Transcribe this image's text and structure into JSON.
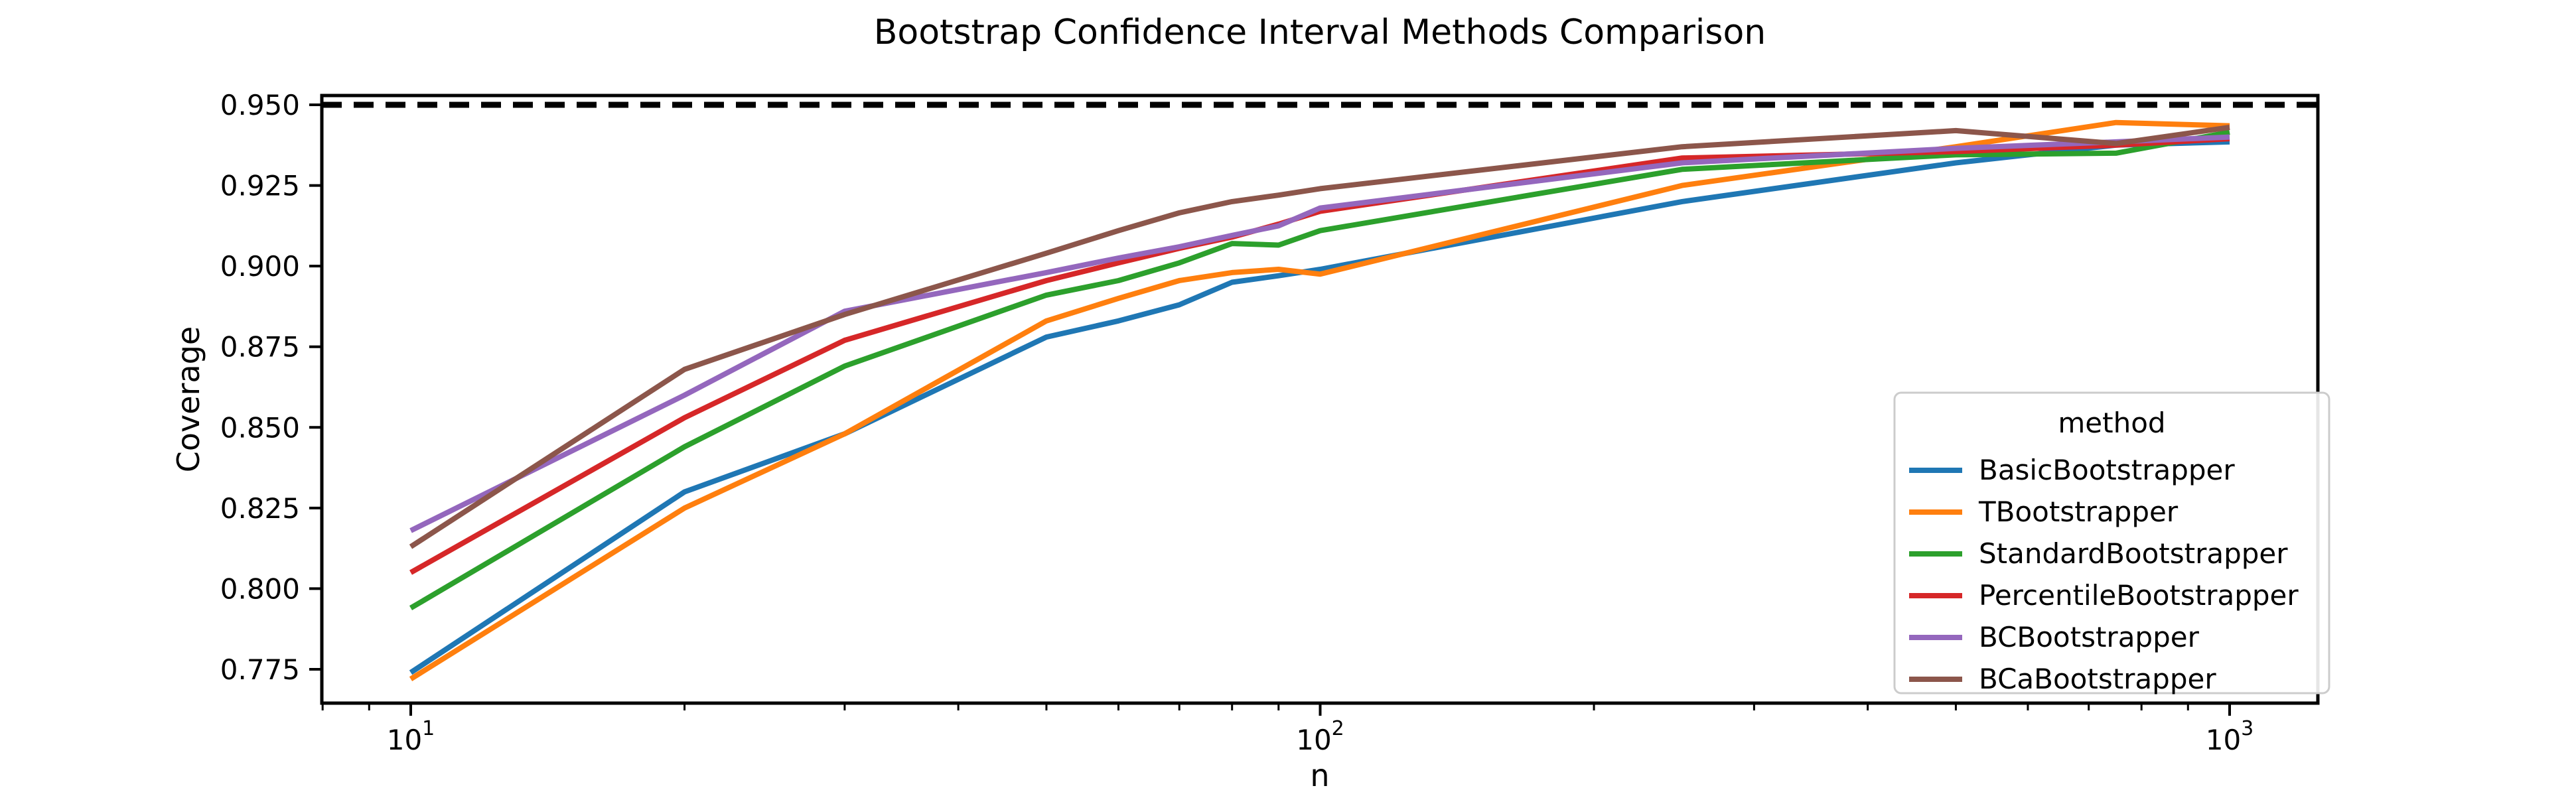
{
  "chart_data": {
    "type": "line",
    "title": "Bootstrap Confidence Interval Methods Comparison",
    "xlabel": "n",
    "ylabel": "Coverage",
    "x_scale": "log",
    "grid": false,
    "xlim": [
      8,
      1250
    ],
    "ylim": [
      0.7645,
      0.953
    ],
    "x": [
      10,
      20,
      30,
      50,
      60,
      70,
      80,
      90,
      100,
      250,
      500,
      750,
      1000
    ],
    "series": [
      {
        "name": "BasicBootstrapper",
        "color": "#1f77b4",
        "values": [
          0.774,
          0.83,
          0.848,
          0.878,
          0.883,
          0.888,
          0.895,
          0.897,
          0.899,
          0.92,
          0.932,
          0.9375,
          0.9385
        ]
      },
      {
        "name": "TBootstrapper",
        "color": "#ff7f0e",
        "values": [
          0.772,
          0.825,
          0.848,
          0.883,
          0.89,
          0.8955,
          0.898,
          0.899,
          0.8975,
          0.925,
          0.937,
          0.9445,
          0.9435
        ]
      },
      {
        "name": "StandardBootstrapper",
        "color": "#2ca02c",
        "values": [
          0.794,
          0.844,
          0.869,
          0.891,
          0.8955,
          0.901,
          0.907,
          0.9065,
          0.911,
          0.93,
          0.9345,
          0.935,
          0.9415
        ]
      },
      {
        "name": "PercentileBootstrapper",
        "color": "#d62728",
        "values": [
          0.805,
          0.853,
          0.877,
          0.8955,
          0.901,
          0.9055,
          0.909,
          0.913,
          0.917,
          0.9335,
          0.9355,
          0.9375,
          0.9395
        ]
      },
      {
        "name": "BCBootstrapper",
        "color": "#9467bd",
        "values": [
          0.818,
          0.86,
          0.886,
          0.898,
          0.9025,
          0.906,
          0.9095,
          0.9125,
          0.918,
          0.932,
          0.9365,
          0.9385,
          0.94
        ]
      },
      {
        "name": "BCaBootstrapper",
        "color": "#8c564b",
        "values": [
          0.813,
          0.868,
          0.885,
          0.904,
          0.911,
          0.9165,
          0.92,
          0.922,
          0.924,
          0.937,
          0.942,
          0.938,
          0.943
        ]
      }
    ],
    "target_line": {
      "value": 0.95,
      "color": "#000000",
      "style": "dashed"
    },
    "y_ticks": {
      "values": [
        0.95,
        0.925,
        0.9,
        0.875,
        0.85,
        0.825,
        0.8,
        0.775
      ],
      "labels": [
        "0.950",
        "0.925",
        "0.900",
        "0.875",
        "0.850",
        "0.825",
        "0.800",
        "0.775"
      ]
    },
    "x_major_ticks": [
      {
        "value": 10,
        "base": "10",
        "exponent": "1"
      },
      {
        "value": 100,
        "base": "10",
        "exponent": "2"
      },
      {
        "value": 1000,
        "base": "10",
        "exponent": "3"
      }
    ],
    "x_minor_ticks": [
      8,
      9,
      20,
      30,
      40,
      50,
      60,
      70,
      80,
      90,
      200,
      300,
      400,
      500,
      600,
      700,
      800,
      900
    ],
    "legend": {
      "title": "method",
      "position": "lower right",
      "entries": [
        "BasicBootstrapper",
        "TBootstrapper",
        "StandardBootstrapper",
        "PercentileBootstrapper",
        "BCBootstrapper",
        "BCaBootstrapper"
      ]
    }
  }
}
